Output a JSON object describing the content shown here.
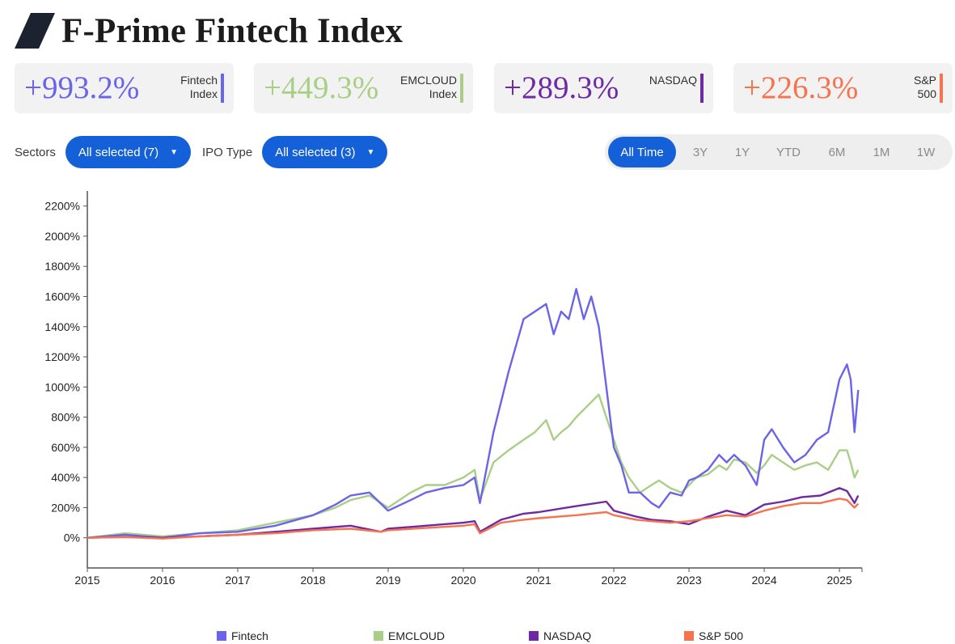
{
  "header": {
    "title": "F-Prime Fintech Index",
    "logo_color": "#1c2230"
  },
  "kpis": [
    {
      "value": "+993.2%",
      "label": "Fintech\nIndex",
      "color": "#6b63e8"
    },
    {
      "value": "+449.3%",
      "label": "EMCLOUD\nIndex",
      "color": "#a9cf86"
    },
    {
      "value": "+289.3%",
      "label": "NASDAQ",
      "color": "#6e2aa3"
    },
    {
      "value": "+226.3%",
      "label": "S&P\n500",
      "color": "#f5734f"
    }
  ],
  "filters": {
    "sectors_label": "Sectors",
    "sectors_value": "All selected (7)",
    "ipo_label": "IPO Type",
    "ipo_value": "All selected (3)",
    "accent": "#1460d8"
  },
  "ranges": [
    "All Time",
    "3Y",
    "1Y",
    "YTD",
    "6M",
    "1M",
    "1W"
  ],
  "active_range": "All Time",
  "chart_data": {
    "type": "line",
    "title": "",
    "xlabel": "",
    "ylabel": "",
    "x_ticks": [
      "2015",
      "2016",
      "2017",
      "2018",
      "2019",
      "2020",
      "2021",
      "2022",
      "2023",
      "2024",
      "2025"
    ],
    "y_ticks": [
      "0%",
      "200%",
      "400%",
      "600%",
      "800%",
      "1000%",
      "1200%",
      "1400%",
      "1600%",
      "1800%",
      "2000%",
      "2200%"
    ],
    "xlim": [
      2015.0,
      2025.3
    ],
    "ylim": [
      -200,
      2300
    ],
    "grid": false,
    "legend_position": "bottom",
    "series": [
      {
        "name": "Fintech",
        "color": "#6b63e8",
        "x": [
          2015.0,
          2015.5,
          2016.0,
          2016.5,
          2017.0,
          2017.5,
          2018.0,
          2018.3,
          2018.5,
          2018.75,
          2019.0,
          2019.3,
          2019.5,
          2019.75,
          2020.0,
          2020.15,
          2020.22,
          2020.4,
          2020.6,
          2020.8,
          2020.95,
          2021.1,
          2021.2,
          2021.3,
          2021.4,
          2021.5,
          2021.6,
          2021.7,
          2021.8,
          2021.9,
          2022.0,
          2022.1,
          2022.2,
          2022.35,
          2022.5,
          2022.6,
          2022.75,
          2022.9,
          2023.0,
          2023.1,
          2023.25,
          2023.4,
          2023.5,
          2023.6,
          2023.75,
          2023.9,
          2024.0,
          2024.1,
          2024.25,
          2024.4,
          2024.55,
          2024.7,
          2024.85,
          2025.0,
          2025.1,
          2025.15,
          2025.2,
          2025.25
        ],
        "y": [
          0,
          20,
          0,
          30,
          40,
          80,
          150,
          220,
          280,
          300,
          180,
          250,
          300,
          330,
          350,
          400,
          230,
          700,
          1100,
          1450,
          1500,
          1550,
          1350,
          1500,
          1450,
          1650,
          1450,
          1600,
          1400,
          1000,
          600,
          480,
          300,
          300,
          230,
          200,
          300,
          280,
          380,
          400,
          450,
          550,
          500,
          550,
          480,
          350,
          650,
          720,
          600,
          500,
          550,
          650,
          700,
          1050,
          1150,
          1050,
          700,
          980
        ]
      },
      {
        "name": "EMCLOUD",
        "color": "#a9cf86",
        "x": [
          2015.0,
          2015.5,
          2016.0,
          2016.5,
          2017.0,
          2017.5,
          2018.0,
          2018.3,
          2018.5,
          2018.75,
          2019.0,
          2019.3,
          2019.5,
          2019.75,
          2020.0,
          2020.15,
          2020.22,
          2020.4,
          2020.6,
          2020.8,
          2020.95,
          2021.1,
          2021.2,
          2021.3,
          2021.4,
          2021.5,
          2021.6,
          2021.7,
          2021.8,
          2021.9,
          2022.0,
          2022.1,
          2022.2,
          2022.35,
          2022.5,
          2022.6,
          2022.75,
          2022.9,
          2023.0,
          2023.1,
          2023.25,
          2023.4,
          2023.5,
          2023.6,
          2023.75,
          2023.9,
          2024.0,
          2024.1,
          2024.25,
          2024.4,
          2024.55,
          2024.7,
          2024.85,
          2025.0,
          2025.1,
          2025.15,
          2025.2,
          2025.25
        ],
        "y": [
          0,
          30,
          10,
          30,
          50,
          100,
          150,
          200,
          250,
          280,
          200,
          300,
          350,
          350,
          400,
          450,
          250,
          500,
          580,
          650,
          700,
          780,
          650,
          700,
          740,
          800,
          850,
          900,
          950,
          800,
          650,
          500,
          400,
          300,
          350,
          380,
          330,
          300,
          350,
          400,
          420,
          480,
          450,
          520,
          500,
          430,
          480,
          550,
          500,
          450,
          480,
          500,
          450,
          580,
          580,
          500,
          400,
          450
        ]
      },
      {
        "name": "NASDAQ",
        "color": "#6e2aa3",
        "x": [
          2015.0,
          2015.5,
          2016.0,
          2016.5,
          2017.0,
          2017.5,
          2018.0,
          2018.5,
          2018.9,
          2019.0,
          2019.5,
          2020.0,
          2020.15,
          2020.22,
          2020.5,
          2020.8,
          2021.0,
          2021.5,
          2021.9,
          2022.0,
          2022.3,
          2022.5,
          2022.75,
          2023.0,
          2023.25,
          2023.5,
          2023.75,
          2024.0,
          2024.25,
          2024.5,
          2024.75,
          2025.0,
          2025.1,
          2025.2,
          2025.25
        ],
        "y": [
          0,
          5,
          0,
          10,
          20,
          40,
          60,
          80,
          40,
          60,
          80,
          100,
          110,
          40,
          120,
          160,
          170,
          210,
          240,
          180,
          140,
          120,
          110,
          90,
          140,
          180,
          150,
          220,
          240,
          270,
          280,
          330,
          310,
          230,
          280
        ]
      },
      {
        "name": "S&P 500",
        "color": "#f5734f",
        "x": [
          2015.0,
          2015.5,
          2016.0,
          2016.5,
          2017.0,
          2017.5,
          2018.0,
          2018.5,
          2018.9,
          2019.0,
          2019.5,
          2020.0,
          2020.15,
          2020.22,
          2020.5,
          2020.8,
          2021.0,
          2021.5,
          2021.9,
          2022.0,
          2022.3,
          2022.5,
          2022.75,
          2023.0,
          2023.25,
          2023.5,
          2023.75,
          2024.0,
          2024.25,
          2024.5,
          2024.75,
          2025.0,
          2025.1,
          2025.2,
          2025.25
        ],
        "y": [
          0,
          5,
          -5,
          10,
          20,
          30,
          50,
          60,
          40,
          50,
          65,
          80,
          90,
          30,
          100,
          120,
          130,
          150,
          170,
          150,
          120,
          110,
          100,
          110,
          130,
          150,
          140,
          180,
          210,
          230,
          230,
          260,
          250,
          200,
          226
        ]
      }
    ]
  }
}
